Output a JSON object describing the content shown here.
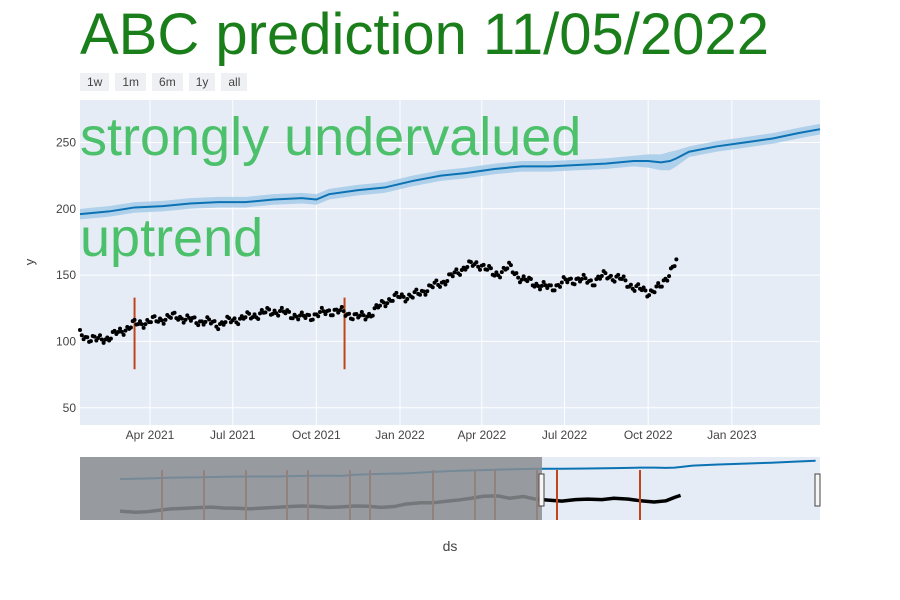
{
  "title": "ABC prediction 11/05/2022",
  "title_color": "#1a7f1a",
  "annotation_color": "#4cc06a",
  "range_buttons": [
    "1w",
    "1m",
    "6m",
    "1y",
    "all"
  ],
  "annotations": [
    "strongly undervalued",
    "uptrend"
  ],
  "colors": {
    "plot_bg": "#e5ecf6",
    "forecast_line": "#0b72b4",
    "band": "#a6cbe8",
    "actual": "#000000",
    "changepoint": "#c0461a",
    "selector_shade": "#8a8d90"
  },
  "chart_data": {
    "type": "line",
    "title": "ABC prediction 11/05/2022",
    "xlabel": "ds",
    "ylabel": "y",
    "x_range": [
      "2021-01-14",
      "2023-04-08"
    ],
    "ylim": [
      37,
      282
    ],
    "y_ticks": [
      50,
      100,
      150,
      200,
      250
    ],
    "x_tick_labels": [
      "Apr 2021",
      "Jul 2021",
      "Oct 2021",
      "Jan 2022",
      "Apr 2022",
      "Jul 2022",
      "Oct 2022",
      "Jan 2023"
    ],
    "x_tick_dates": [
      "2021-04-01",
      "2021-07-01",
      "2021-10-01",
      "2022-01-01",
      "2022-04-01",
      "2022-07-01",
      "2022-10-01",
      "2023-01-01"
    ],
    "grid": true,
    "series": [
      {
        "kind": "forecast",
        "dates": [
          "2021-01-14",
          "2021-02-15",
          "2021-03-15",
          "2021-04-15",
          "2021-05-15",
          "2021-06-15",
          "2021-07-15",
          "2021-08-15",
          "2021-09-15",
          "2021-10-01",
          "2021-10-15",
          "2021-11-15",
          "2021-12-15",
          "2022-01-15",
          "2022-02-15",
          "2022-03-15",
          "2022-04-15",
          "2022-05-15",
          "2022-06-15",
          "2022-07-15",
          "2022-08-15",
          "2022-09-15",
          "2022-10-01",
          "2022-10-15",
          "2022-10-25",
          "2022-11-01",
          "2022-11-15",
          "2022-12-15",
          "2023-01-15",
          "2023-02-15",
          "2023-03-15",
          "2023-04-08"
        ],
        "yhat": [
          196,
          198,
          201,
          202,
          204,
          205,
          205,
          207,
          208,
          207,
          211,
          214,
          216,
          221,
          225,
          227,
          230,
          232,
          232,
          233,
          234,
          236,
          236,
          235,
          236,
          238,
          243,
          247,
          250,
          253,
          257,
          260
        ],
        "lower": [
          192,
          194,
          197,
          198,
          200,
          201,
          201,
          203,
          204,
          203,
          207,
          210,
          212,
          217,
          221,
          223,
          226,
          228,
          228,
          229,
          230,
          232,
          231,
          229,
          229,
          232,
          239,
          243,
          246,
          249,
          253,
          256
        ],
        "upper": [
          200,
          202,
          205,
          206,
          208,
          209,
          209,
          211,
          212,
          211,
          215,
          218,
          220,
          225,
          229,
          231,
          234,
          236,
          236,
          237,
          238,
          240,
          241,
          241,
          243,
          244,
          247,
          251,
          254,
          257,
          261,
          264
        ]
      },
      {
        "kind": "actual",
        "dates": [
          "2021-01-14",
          "2021-02-01",
          "2021-02-15",
          "2021-03-01",
          "2021-03-15",
          "2021-04-01",
          "2021-04-15",
          "2021-05-01",
          "2021-05-15",
          "2021-06-01",
          "2021-06-15",
          "2021-07-01",
          "2021-07-15",
          "2021-08-01",
          "2021-08-15",
          "2021-09-01",
          "2021-09-15",
          "2021-10-01",
          "2021-10-15",
          "2021-11-01",
          "2021-11-15",
          "2021-12-01",
          "2021-12-15",
          "2022-01-01",
          "2022-01-15",
          "2022-02-01",
          "2022-02-15",
          "2022-03-01",
          "2022-03-15",
          "2022-04-01",
          "2022-04-15",
          "2022-05-01",
          "2022-05-15",
          "2022-06-01",
          "2022-06-15",
          "2022-07-01",
          "2022-07-15",
          "2022-08-01",
          "2022-08-15",
          "2022-09-01",
          "2022-09-15",
          "2022-10-01",
          "2022-10-15",
          "2022-10-25",
          "2022-11-01"
        ],
        "y": [
          105,
          101,
          103,
          108,
          113,
          115,
          117,
          119,
          116,
          115,
          113,
          116,
          118,
          121,
          123,
          121,
          118,
          120,
          123,
          122,
          118,
          121,
          130,
          134,
          134,
          140,
          144,
          150,
          157,
          158,
          150,
          156,
          147,
          143,
          140,
          145,
          147,
          145,
          150,
          147,
          141,
          137,
          141,
          153,
          160
        ]
      }
    ],
    "changepoints": [
      "2021-03-15",
      "2021-11-01"
    ],
    "range_slider_changepoints": [
      "2021-03-15",
      "2022-07-25",
      "2022-10-01"
    ]
  },
  "axis": {
    "xlabel": "ds",
    "ylabel": "y"
  }
}
